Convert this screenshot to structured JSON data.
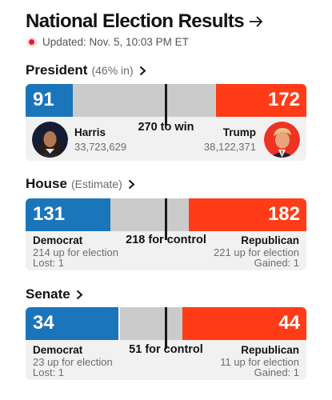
{
  "header": {
    "title": "National Election Results",
    "updated": "Updated: Nov. 5, 10:03 PM ET"
  },
  "president": {
    "name": "President",
    "note": "(46% in)",
    "dem_total": "91",
    "rep_total": "172",
    "threshold": "270 to win",
    "dem_candidate": "Harris",
    "dem_votes": "33,723,629",
    "rep_candidate": "Trump",
    "rep_votes": "38,122,371"
  },
  "house": {
    "name": "House",
    "note": "(Estimate)",
    "dem_total": "131",
    "rep_total": "182",
    "threshold": "218 for control",
    "dem_label": "Democrat",
    "rep_label": "Republican",
    "dem_up": "214 up for election",
    "rep_up": "221 up for election",
    "dem_change": "Lost: 1",
    "rep_change": "Gained: 1"
  },
  "senate": {
    "name": "Senate",
    "dem_total": "34",
    "rep_total": "44",
    "threshold": "51 for control",
    "dem_label": "Democrat",
    "rep_label": "Republican",
    "dem_up": "23 up for election",
    "rep_up": "11 up for election",
    "dem_change": "Lost: 1",
    "rep_change": "Gained: 1"
  },
  "colors": {
    "democrat": "#1a75ba",
    "republican": "#ff3c17",
    "uncalled": "#cbcbcb",
    "live": "#e8182c"
  },
  "icons": [
    "arrow-right-icon",
    "chevron-right-icon",
    "live-dot-icon",
    "harris-avatar",
    "trump-avatar"
  ]
}
